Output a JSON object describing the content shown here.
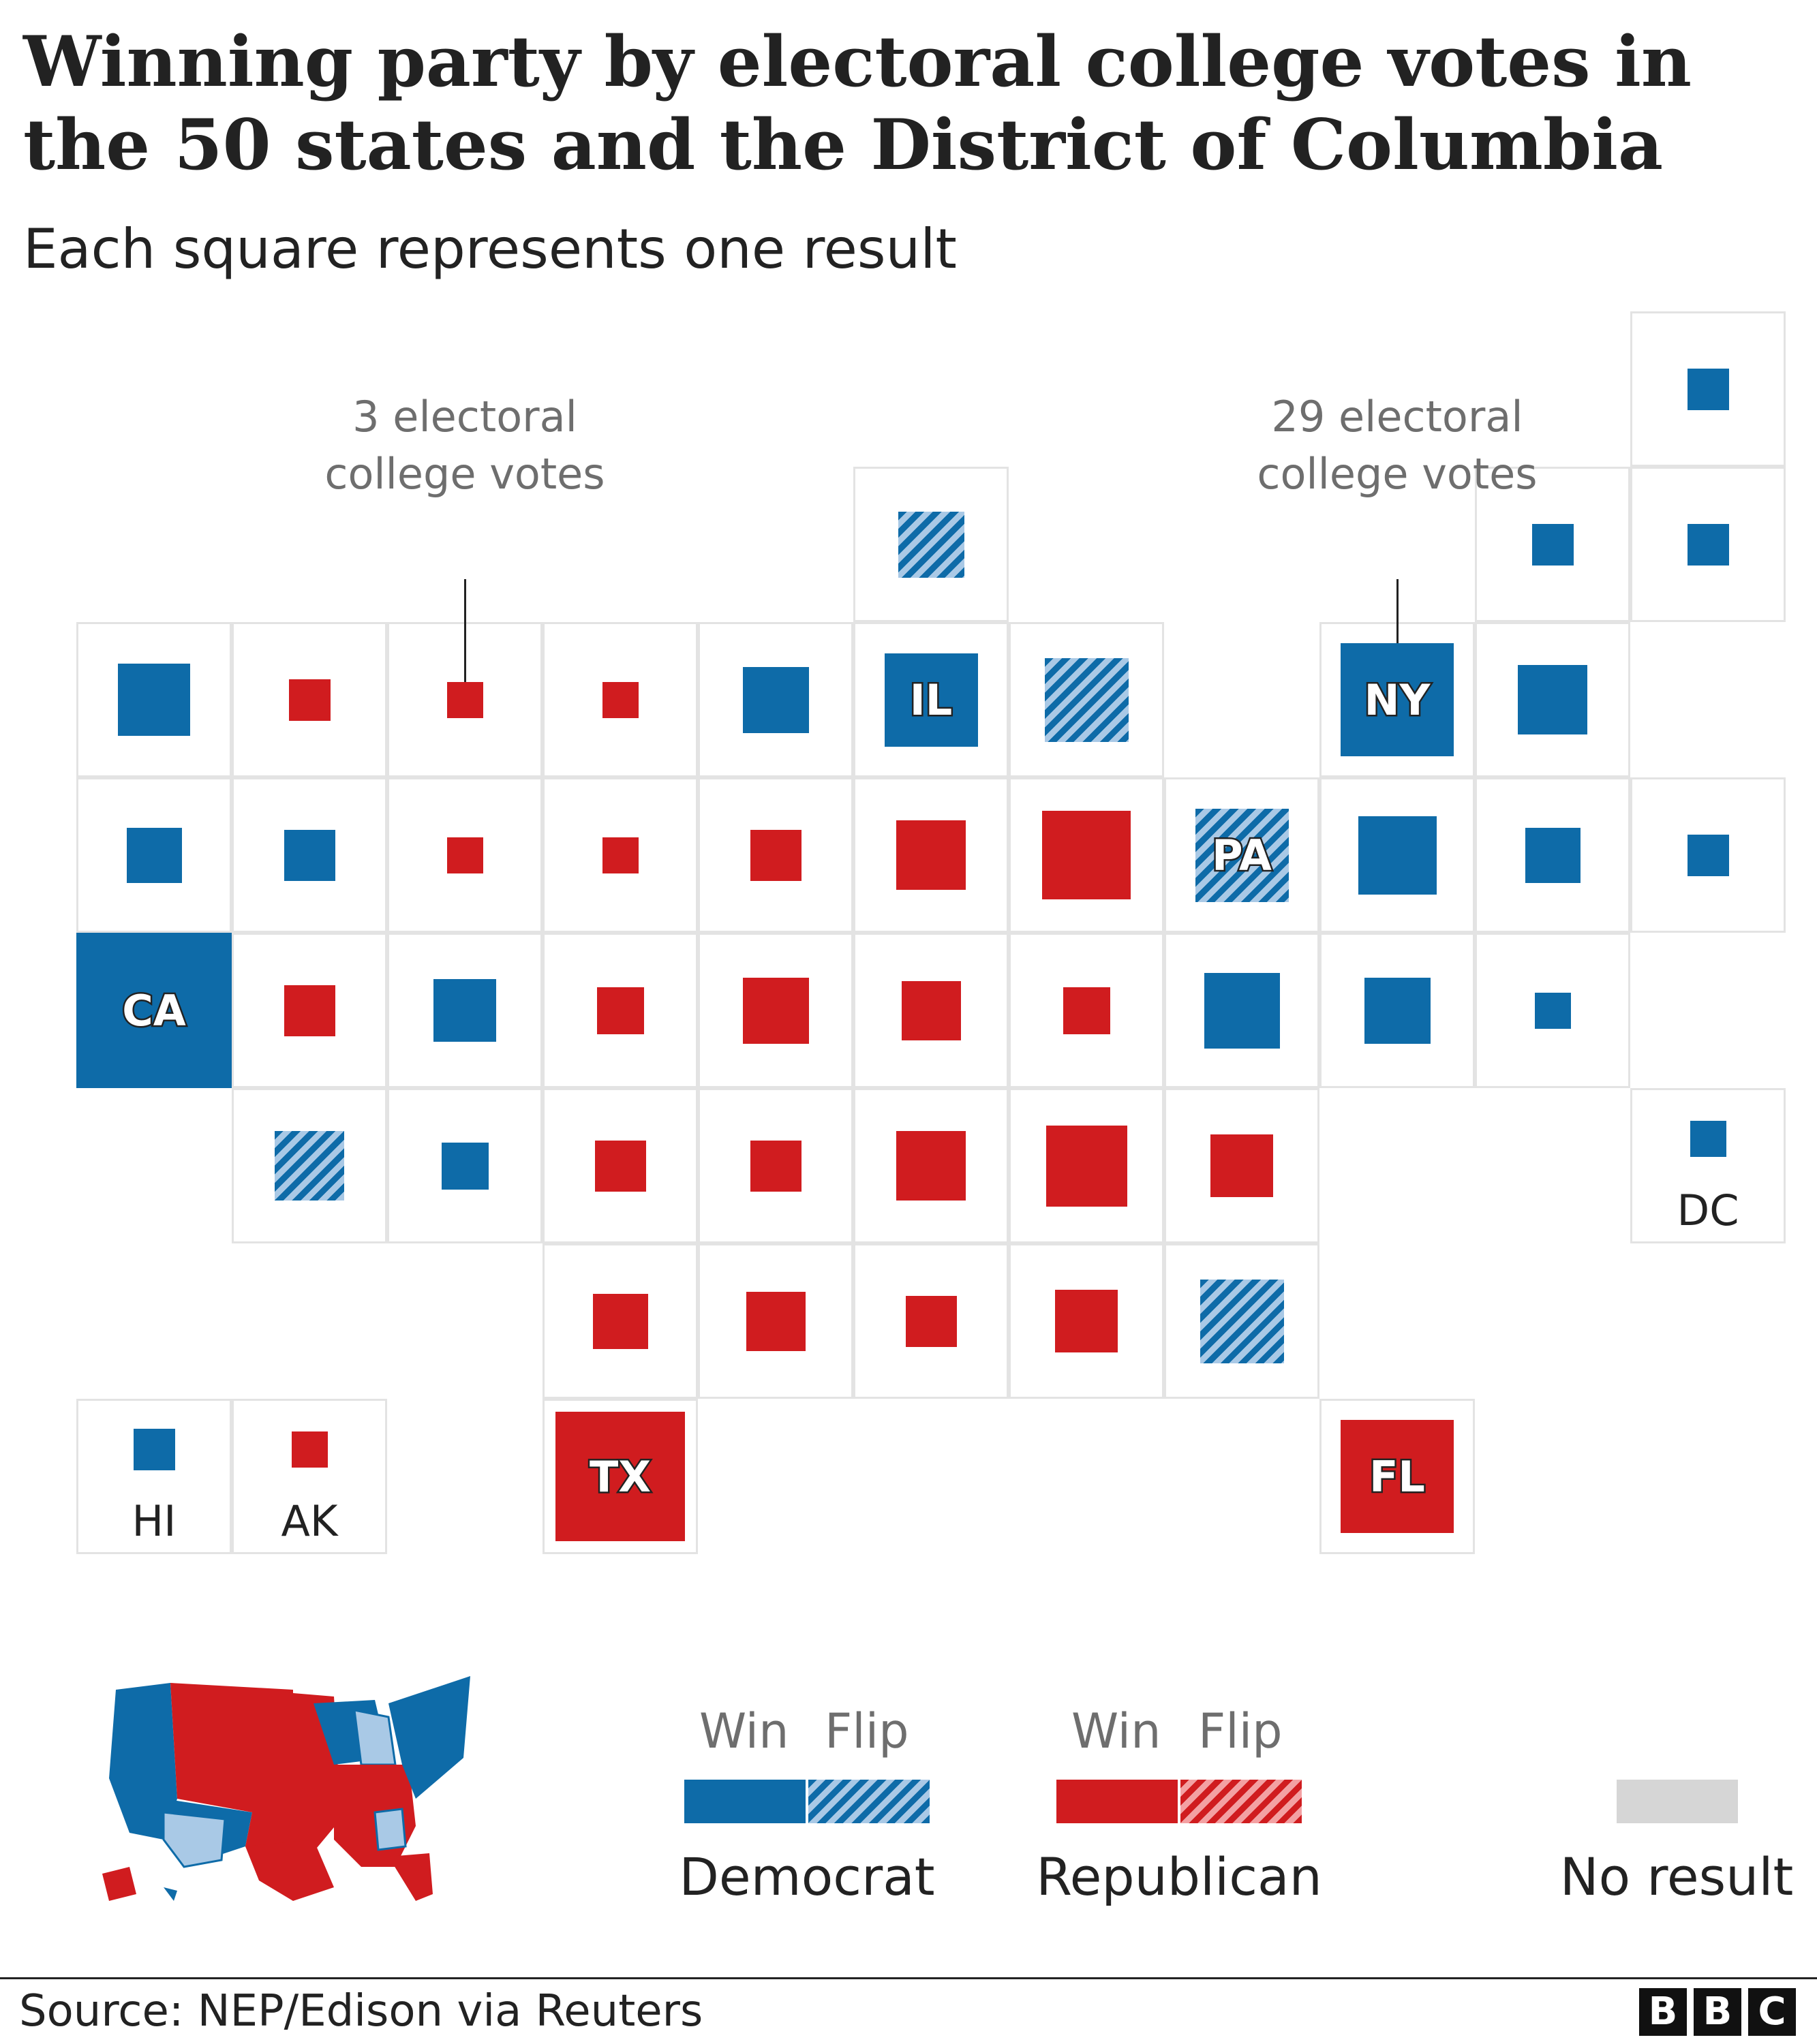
{
  "title": "Winning party by electoral college votes in the 50 states and the District of Columbia",
  "subtitle": "Each square represents one result",
  "colors": {
    "democrat": "#0e6ba8",
    "democrat_flip_stripe": "#a9c9e6",
    "republican": "#d01c1f",
    "republican_flip_stripe": "#f3a1a3",
    "no_result": "#d6d6d6",
    "cell_border": "#e3e3e3"
  },
  "annotations": {
    "small": "3 electoral college votes",
    "large": "29 electoral college votes"
  },
  "cells": [
    {
      "r": 0,
      "c": 10,
      "party": "dem",
      "votes": 4
    },
    {
      "r": 1,
      "c": 5,
      "party": "dem-flip",
      "votes": 10
    },
    {
      "r": 1,
      "c": 9,
      "party": "dem",
      "votes": 4
    },
    {
      "r": 1,
      "c": 10,
      "party": "dem",
      "votes": 4
    },
    {
      "r": 2,
      "c": 0,
      "party": "dem",
      "votes": 12
    },
    {
      "r": 2,
      "c": 1,
      "party": "rep",
      "votes": 4
    },
    {
      "r": 2,
      "c": 2,
      "party": "rep",
      "votes": 3,
      "annotated": "small"
    },
    {
      "r": 2,
      "c": 3,
      "party": "rep",
      "votes": 3
    },
    {
      "r": 2,
      "c": 4,
      "party": "dem",
      "votes": 10
    },
    {
      "r": 2,
      "c": 5,
      "party": "dem",
      "votes": 20,
      "label": "IL"
    },
    {
      "r": 2,
      "c": 6,
      "party": "dem-flip",
      "votes": 16
    },
    {
      "r": 2,
      "c": 8,
      "party": "dem",
      "votes": 29,
      "label": "NY",
      "annotated": "large"
    },
    {
      "r": 2,
      "c": 9,
      "party": "dem",
      "votes": 11
    },
    {
      "r": 3,
      "c": 0,
      "party": "dem",
      "votes": 7
    },
    {
      "r": 3,
      "c": 1,
      "party": "dem",
      "votes": 6
    },
    {
      "r": 3,
      "c": 2,
      "party": "rep",
      "votes": 3
    },
    {
      "r": 3,
      "c": 3,
      "party": "rep",
      "votes": 3
    },
    {
      "r": 3,
      "c": 4,
      "party": "rep",
      "votes": 6
    },
    {
      "r": 3,
      "c": 5,
      "party": "rep",
      "votes": 11
    },
    {
      "r": 3,
      "c": 6,
      "party": "rep",
      "votes": 18
    },
    {
      "r": 3,
      "c": 7,
      "party": "dem-flip",
      "votes": 20,
      "label": "PA"
    },
    {
      "r": 3,
      "c": 8,
      "party": "dem",
      "votes": 14
    },
    {
      "r": 3,
      "c": 9,
      "party": "dem",
      "votes": 7
    },
    {
      "r": 3,
      "c": 10,
      "party": "dem",
      "votes": 4
    },
    {
      "r": 4,
      "c": 0,
      "party": "dem",
      "votes": 55,
      "label": "CA"
    },
    {
      "r": 4,
      "c": 1,
      "party": "rep",
      "votes": 6
    },
    {
      "r": 4,
      "c": 2,
      "party": "dem",
      "votes": 9
    },
    {
      "r": 4,
      "c": 3,
      "party": "rep",
      "votes": 5
    },
    {
      "r": 4,
      "c": 4,
      "party": "rep",
      "votes": 10
    },
    {
      "r": 4,
      "c": 5,
      "party": "rep",
      "votes": 8
    },
    {
      "r": 4,
      "c": 6,
      "party": "rep",
      "votes": 5
    },
    {
      "r": 4,
      "c": 7,
      "party": "dem",
      "votes": 13
    },
    {
      "r": 4,
      "c": 8,
      "party": "dem",
      "votes": 10
    },
    {
      "r": 4,
      "c": 9,
      "party": "dem",
      "votes": 3
    },
    {
      "r": 5,
      "c": 1,
      "party": "dem-flip",
      "votes": 11
    },
    {
      "r": 5,
      "c": 2,
      "party": "dem",
      "votes": 5
    },
    {
      "r": 5,
      "c": 3,
      "party": "rep",
      "votes": 6
    },
    {
      "r": 5,
      "c": 4,
      "party": "rep",
      "votes": 6
    },
    {
      "r": 5,
      "c": 5,
      "party": "rep",
      "votes": 11
    },
    {
      "r": 5,
      "c": 6,
      "party": "rep",
      "votes": 15
    },
    {
      "r": 5,
      "c": 7,
      "party": "rep",
      "votes": 9
    },
    {
      "r": 5,
      "c": 10,
      "party": "dem",
      "votes": 3,
      "caption": "DC"
    },
    {
      "r": 6,
      "c": 3,
      "party": "rep",
      "votes": 7
    },
    {
      "r": 6,
      "c": 4,
      "party": "rep",
      "votes": 8
    },
    {
      "r": 6,
      "c": 5,
      "party": "rep",
      "votes": 6
    },
    {
      "r": 6,
      "c": 6,
      "party": "rep",
      "votes": 9
    },
    {
      "r": 6,
      "c": 7,
      "party": "dem-flip",
      "votes": 16
    },
    {
      "r": 7,
      "c": 0,
      "party": "dem",
      "votes": 4,
      "caption": "HI"
    },
    {
      "r": 7,
      "c": 1,
      "party": "rep",
      "votes": 3,
      "caption": "AK"
    },
    {
      "r": 7,
      "c": 3,
      "party": "rep",
      "votes": 38,
      "label": "TX"
    },
    {
      "r": 7,
      "c": 8,
      "party": "rep",
      "votes": 29,
      "label": "FL"
    }
  ],
  "legend": {
    "win_label": "Win",
    "flip_label": "Flip",
    "democrat": "Democrat",
    "republican": "Republican",
    "no_result": "No result"
  },
  "source": "Source: NEP/Edison via Reuters",
  "logo": [
    "B",
    "B",
    "C"
  ]
}
